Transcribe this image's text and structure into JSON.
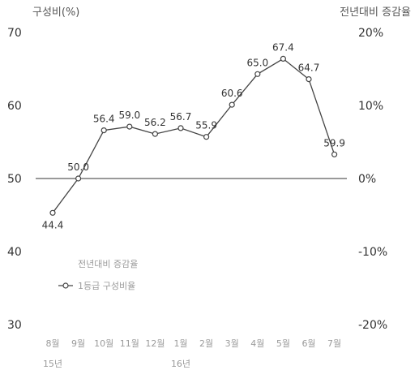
{
  "chart_data": {
    "type": "line",
    "left_axis_title": "구성비(%)",
    "right_axis_title": "전년대비 증감율",
    "categories": [
      "8월",
      "9월",
      "10월",
      "11월",
      "12월",
      "1월",
      "2월",
      "3월",
      "4월",
      "5월",
      "6월",
      "7월"
    ],
    "year_labels": [
      {
        "label": "15년",
        "category_index": 0
      },
      {
        "label": "16년",
        "category_index": 5
      }
    ],
    "left_axis": {
      "min": 30,
      "max": 70,
      "ticks": [
        "70",
        "60",
        "50",
        "40",
        "30"
      ]
    },
    "right_axis": {
      "min": -20,
      "max": 20,
      "ticks": [
        "20%",
        "10%",
        "0%",
        "-10%",
        "-20%"
      ]
    },
    "reference_line_value": 50,
    "series": [
      {
        "name": "1등급 구성비율",
        "axis": "right",
        "values": [
          -4.7,
          0.0,
          6.6,
          7.1,
          6.1,
          6.9,
          5.7,
          10.1,
          14.3,
          16.4,
          13.6,
          3.3
        ],
        "labels": [
          "44.4",
          "50.0",
          "56.4",
          "59.0",
          "56.2",
          "56.7",
          "55.9",
          "60.6",
          "65.0",
          "67.4",
          "64.7",
          "59.9"
        ]
      }
    ],
    "legend": {
      "title": "전년대비 증감율",
      "placement": "middle-left"
    },
    "colors": {
      "line": "#444444",
      "marker_fill": "#ffffff",
      "zero_line": "#333333"
    }
  }
}
